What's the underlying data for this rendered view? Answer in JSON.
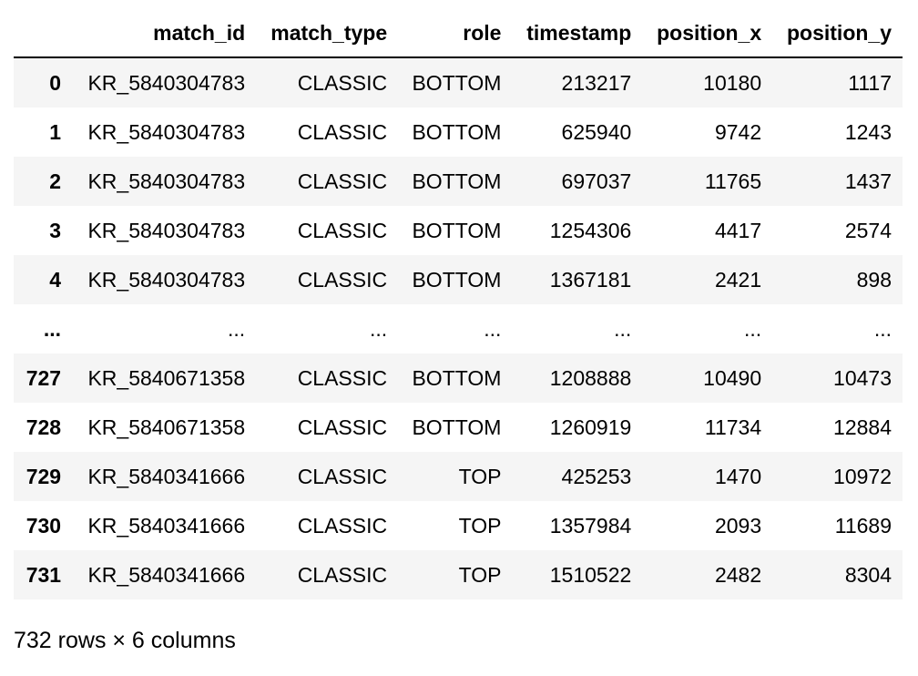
{
  "table": {
    "columns": [
      "match_id",
      "match_type",
      "role",
      "timestamp",
      "position_x",
      "position_y"
    ],
    "rows": [
      {
        "index": "0",
        "cells": [
          "KR_5840304783",
          "CLASSIC",
          "BOTTOM",
          "213217",
          "10180",
          "1117"
        ]
      },
      {
        "index": "1",
        "cells": [
          "KR_5840304783",
          "CLASSIC",
          "BOTTOM",
          "625940",
          "9742",
          "1243"
        ]
      },
      {
        "index": "2",
        "cells": [
          "KR_5840304783",
          "CLASSIC",
          "BOTTOM",
          "697037",
          "11765",
          "1437"
        ]
      },
      {
        "index": "3",
        "cells": [
          "KR_5840304783",
          "CLASSIC",
          "BOTTOM",
          "1254306",
          "4417",
          "2574"
        ]
      },
      {
        "index": "4",
        "cells": [
          "KR_5840304783",
          "CLASSIC",
          "BOTTOM",
          "1367181",
          "2421",
          "898"
        ]
      },
      {
        "index": "...",
        "cells": [
          "...",
          "...",
          "...",
          "...",
          "...",
          "..."
        ]
      },
      {
        "index": "727",
        "cells": [
          "KR_5840671358",
          "CLASSIC",
          "BOTTOM",
          "1208888",
          "10490",
          "10473"
        ]
      },
      {
        "index": "728",
        "cells": [
          "KR_5840671358",
          "CLASSIC",
          "BOTTOM",
          "1260919",
          "11734",
          "12884"
        ]
      },
      {
        "index": "729",
        "cells": [
          "KR_5840341666",
          "CLASSIC",
          "TOP",
          "425253",
          "1470",
          "10972"
        ]
      },
      {
        "index": "730",
        "cells": [
          "KR_5840341666",
          "CLASSIC",
          "TOP",
          "1357984",
          "2093",
          "11689"
        ]
      },
      {
        "index": "731",
        "cells": [
          "KR_5840341666",
          "CLASSIC",
          "TOP",
          "1510522",
          "2482",
          "8304"
        ]
      }
    ]
  },
  "summary": "732 rows × 6 columns"
}
